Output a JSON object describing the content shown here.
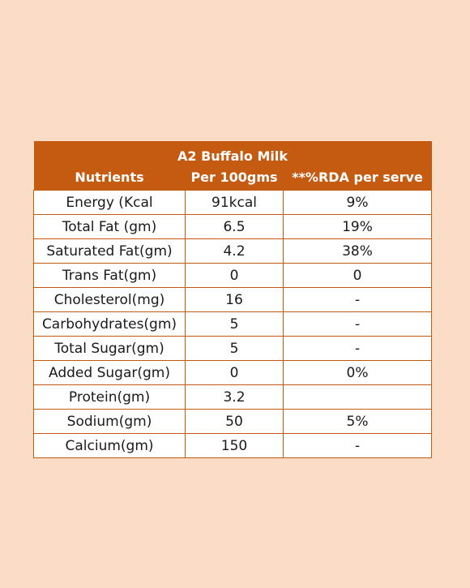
{
  "table": {
    "title": "A2 Buffalo Milk",
    "headers": [
      "Nutrients",
      "Per 100gms",
      "**%RDA per serve"
    ],
    "rows": [
      [
        "Energy (Kcal",
        "91kcal",
        "9%"
      ],
      [
        "Total Fat (gm)",
        "6.5",
        "19%"
      ],
      [
        "Saturated Fat(gm)",
        "4.2",
        "38%"
      ],
      [
        "Trans Fat(gm)",
        "0",
        "0"
      ],
      [
        "Cholesterol(mg)",
        "16",
        "-"
      ],
      [
        "Carbohydrates(gm)",
        "5",
        "-"
      ],
      [
        "Total Sugar(gm)",
        "5",
        "-"
      ],
      [
        "Added Sugar(gm)",
        "0",
        "0%"
      ],
      [
        "Protein(gm)",
        "3.2",
        ""
      ],
      [
        "Sodium(gm)",
        "50",
        "5%"
      ],
      [
        "Calcium(gm)",
        "150",
        "-"
      ]
    ]
  },
  "colors": {
    "background": "#fbdcc6",
    "header_fill": "#c55a11",
    "header_text": "#ffffff",
    "grid": "#c55a11"
  }
}
